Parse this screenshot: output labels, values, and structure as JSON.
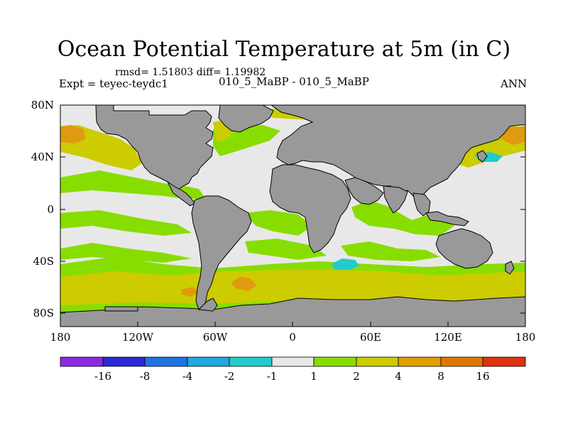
{
  "title": "Ocean Potential Temperature at 5m (in C)",
  "stats": {
    "rmsd_label": "rmsd=",
    "rmsd_value": "1.51803",
    "diff_label": "diff=",
    "diff_value": "1.19982"
  },
  "expt_label": "Expt = teyec-teydc1",
  "case_label": "010_5_MaBP - 010_5_MaBP",
  "season": "ANN",
  "colors": {
    "land": "#999999",
    "neutral": "#e8e8e8",
    "c1_2": "#88dd00",
    "c2_4": "#cccc00",
    "c4_8": "#e09a10",
    "c8_16": "#e06a10",
    "cm2_m1": "#20cccc"
  },
  "axes": {
    "lat_labels": [
      "80N",
      "40N",
      "0",
      "40S",
      "80S"
    ],
    "lon_labels": [
      "180",
      "120W",
      "60W",
      "0",
      "60E",
      "120E",
      "180"
    ]
  },
  "colorbar": {
    "colors": [
      "#8a2be2",
      "#2a2ad8",
      "#1e73e0",
      "#20a8e0",
      "#20cccc",
      "#e8e8e8",
      "#88dd00",
      "#cccc00",
      "#e0a000",
      "#e07800",
      "#e03010"
    ],
    "labels": [
      "-16",
      "-8",
      "-4",
      "-2",
      "-1",
      "1",
      "2",
      "4",
      "8",
      "16"
    ]
  }
}
